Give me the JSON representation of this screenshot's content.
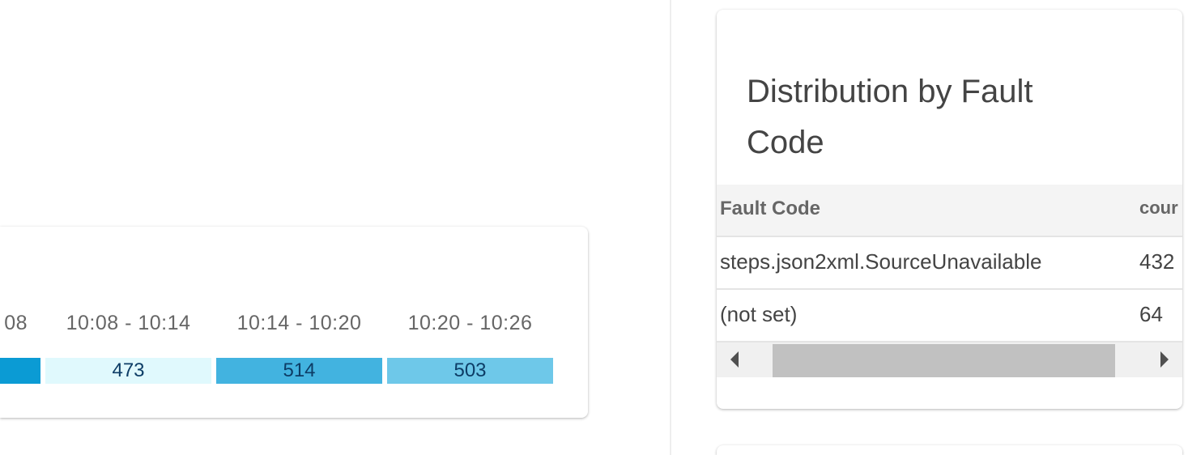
{
  "timeline": {
    "labels": [
      "08",
      "10:08 - 10:14",
      "10:14 - 10:20",
      "10:20 - 10:26"
    ],
    "bars": [
      {
        "value": "",
        "color": "#0b9bd4"
      },
      {
        "value": "473",
        "color": "#e0f9fd"
      },
      {
        "value": "514",
        "color": "#42b3e0"
      },
      {
        "value": "503",
        "color": "#6ec8e9"
      }
    ]
  },
  "fault_card": {
    "title": "Distribution by Fault Code",
    "columns": [
      "Fault Code",
      "cour"
    ],
    "rows": [
      {
        "code": "steps.json2xml.SourceUnavailable",
        "count": "432"
      },
      {
        "code": "(not set)",
        "count": "64"
      }
    ]
  }
}
